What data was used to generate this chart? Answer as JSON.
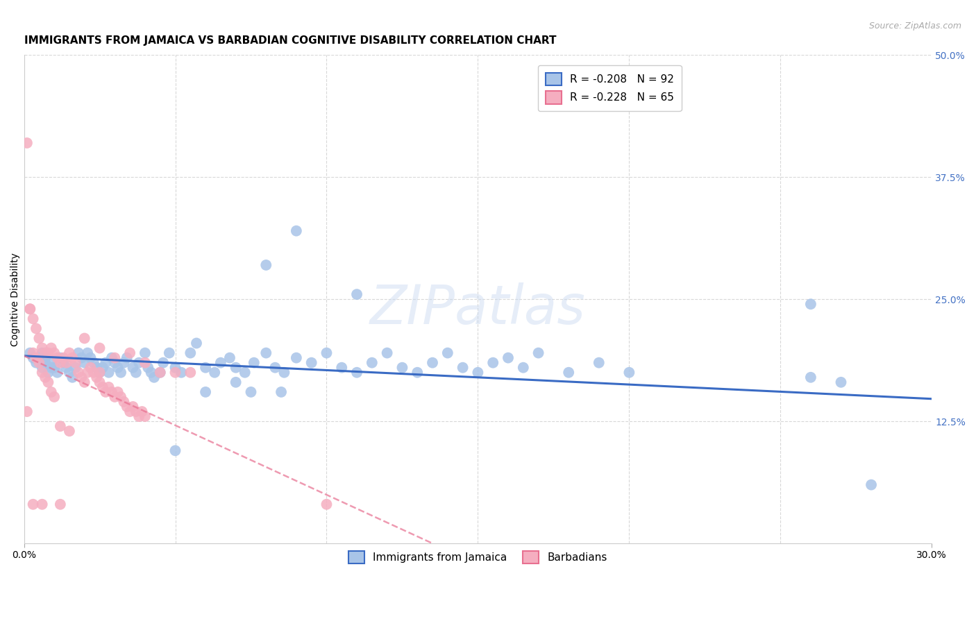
{
  "title": "IMMIGRANTS FROM JAMAICA VS BARBADIAN COGNITIVE DISABILITY CORRELATION CHART",
  "source": "Source: ZipAtlas.com",
  "ylabel": "Cognitive Disability",
  "xlim": [
    0.0,
    0.3
  ],
  "ylim": [
    0.0,
    0.5
  ],
  "yticks_right": [
    0.125,
    0.25,
    0.375,
    0.5
  ],
  "ytick_labels_right": [
    "12.5%",
    "25.0%",
    "37.5%",
    "50.0%"
  ],
  "xtick_labels": [
    "0.0%",
    "30.0%"
  ],
  "xtick_pos": [
    0.0,
    0.3
  ],
  "grid_color": "#d8d8d8",
  "background_color": "#ffffff",
  "watermark_text": "ZIPatlas",
  "blue_color": "#a8c4e8",
  "blue_line_color": "#3a6bc4",
  "pink_color": "#f5aec0",
  "pink_line_color": "#e87090",
  "title_fontsize": 11,
  "axis_label_fontsize": 10,
  "tick_fontsize": 10,
  "legend_fontsize": 11,
  "source_fontsize": 9,
  "series": [
    {
      "name": "Immigrants from Jamaica",
      "R": -0.208,
      "N": 92,
      "line_x0": 0.0,
      "line_y0": 0.192,
      "line_x1": 0.3,
      "line_y1": 0.148,
      "points_x": [
        0.002,
        0.003,
        0.004,
        0.005,
        0.006,
        0.006,
        0.007,
        0.007,
        0.008,
        0.009,
        0.009,
        0.01,
        0.011,
        0.012,
        0.013,
        0.014,
        0.015,
        0.016,
        0.017,
        0.018,
        0.019,
        0.02,
        0.021,
        0.022,
        0.023,
        0.024,
        0.025,
        0.026,
        0.027,
        0.028,
        0.029,
        0.03,
        0.031,
        0.032,
        0.033,
        0.034,
        0.036,
        0.037,
        0.038,
        0.04,
        0.041,
        0.042,
        0.043,
        0.045,
        0.046,
        0.048,
        0.05,
        0.052,
        0.055,
        0.057,
        0.06,
        0.063,
        0.065,
        0.068,
        0.07,
        0.073,
        0.076,
        0.08,
        0.083,
        0.086,
        0.09,
        0.095,
        0.1,
        0.105,
        0.11,
        0.115,
        0.12,
        0.125,
        0.13,
        0.135,
        0.14,
        0.145,
        0.15,
        0.155,
        0.16,
        0.165,
        0.17,
        0.18,
        0.19,
        0.2,
        0.08,
        0.09,
        0.11,
        0.26,
        0.27,
        0.05,
        0.06,
        0.07,
        0.075,
        0.085,
        0.26,
        0.28
      ],
      "points_y": [
        0.195,
        0.19,
        0.185,
        0.19,
        0.195,
        0.18,
        0.185,
        0.19,
        0.175,
        0.18,
        0.185,
        0.18,
        0.175,
        0.19,
        0.185,
        0.18,
        0.175,
        0.17,
        0.18,
        0.195,
        0.19,
        0.185,
        0.195,
        0.19,
        0.185,
        0.18,
        0.175,
        0.18,
        0.185,
        0.175,
        0.19,
        0.185,
        0.18,
        0.175,
        0.185,
        0.19,
        0.18,
        0.175,
        0.185,
        0.195,
        0.18,
        0.175,
        0.17,
        0.175,
        0.185,
        0.195,
        0.18,
        0.175,
        0.195,
        0.205,
        0.18,
        0.175,
        0.185,
        0.19,
        0.18,
        0.175,
        0.185,
        0.195,
        0.18,
        0.175,
        0.19,
        0.185,
        0.195,
        0.18,
        0.175,
        0.185,
        0.195,
        0.18,
        0.175,
        0.185,
        0.195,
        0.18,
        0.175,
        0.185,
        0.19,
        0.18,
        0.195,
        0.175,
        0.185,
        0.175,
        0.285,
        0.32,
        0.255,
        0.245,
        0.165,
        0.095,
        0.155,
        0.165,
        0.155,
        0.155,
        0.17,
        0.06
      ]
    },
    {
      "name": "Barbadians",
      "R": -0.228,
      "N": 65,
      "line_x0": 0.0,
      "line_y0": 0.192,
      "line_x1": 0.135,
      "line_y1": 0.0,
      "points_x": [
        0.001,
        0.002,
        0.003,
        0.003,
        0.004,
        0.004,
        0.005,
        0.005,
        0.006,
        0.006,
        0.007,
        0.007,
        0.008,
        0.008,
        0.009,
        0.009,
        0.01,
        0.01,
        0.011,
        0.012,
        0.013,
        0.014,
        0.015,
        0.016,
        0.017,
        0.018,
        0.019,
        0.02,
        0.021,
        0.022,
        0.023,
        0.024,
        0.025,
        0.026,
        0.027,
        0.028,
        0.029,
        0.03,
        0.031,
        0.032,
        0.033,
        0.034,
        0.035,
        0.036,
        0.037,
        0.038,
        0.039,
        0.04,
        0.012,
        0.015,
        0.02,
        0.025,
        0.03,
        0.035,
        0.04,
        0.045,
        0.05,
        0.055,
        0.1,
        0.003,
        0.006,
        0.012,
        0.025,
        0.002,
        0.001
      ],
      "points_y": [
        0.41,
        0.24,
        0.23,
        0.195,
        0.22,
        0.19,
        0.21,
        0.185,
        0.2,
        0.175,
        0.195,
        0.17,
        0.195,
        0.165,
        0.2,
        0.155,
        0.195,
        0.15,
        0.19,
        0.185,
        0.19,
        0.185,
        0.195,
        0.19,
        0.185,
        0.175,
        0.17,
        0.165,
        0.175,
        0.18,
        0.175,
        0.17,
        0.165,
        0.16,
        0.155,
        0.16,
        0.155,
        0.15,
        0.155,
        0.15,
        0.145,
        0.14,
        0.135,
        0.14,
        0.135,
        0.13,
        0.135,
        0.13,
        0.12,
        0.115,
        0.21,
        0.2,
        0.19,
        0.195,
        0.185,
        0.175,
        0.175,
        0.175,
        0.04,
        0.04,
        0.04,
        0.04,
        0.175,
        0.24,
        0.135
      ]
    }
  ]
}
